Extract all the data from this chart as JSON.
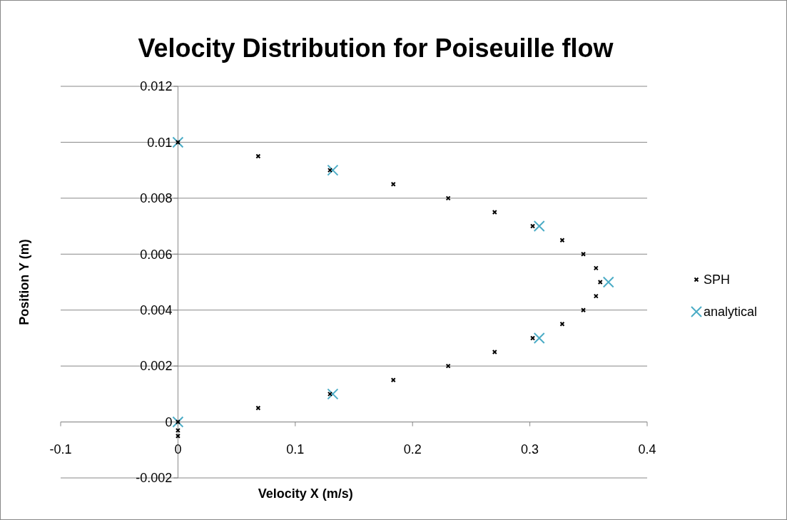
{
  "chart_data": {
    "type": "scatter",
    "title": "Velocity Distribution for Poiseuille flow",
    "xlabel": "Velocity X (m/s)",
    "ylabel": "Position Y (m)",
    "xlim": [
      -0.1,
      0.4
    ],
    "xticks": [
      -0.1,
      0,
      0.1,
      0.2,
      0.3,
      0.4
    ],
    "ylim": [
      -0.002,
      0.012
    ],
    "yticks": [
      -0.002,
      0,
      0.002,
      0.004,
      0.006,
      0.008,
      0.01,
      0.012
    ],
    "grid": "y",
    "legend": "right",
    "series": [
      {
        "name": "SPH",
        "color": "#000000",
        "marker": "cross",
        "x": [
          0,
          0,
          0,
          0.0684,
          0.1296,
          0.1836,
          0.2304,
          0.27,
          0.3024,
          0.3276,
          0.3456,
          0.3564,
          0.36,
          0.3564,
          0.3456,
          0.3276,
          0.3024,
          0.27,
          0.2304,
          0.1836,
          0.1296,
          0.0684,
          0
        ],
        "values": [
          -0.0005,
          -0.0003,
          0,
          0.0005,
          0.001,
          0.0015,
          0.002,
          0.0025,
          0.003,
          0.0035,
          0.004,
          0.0045,
          0.005,
          0.0055,
          0.006,
          0.0065,
          0.007,
          0.0075,
          0.008,
          0.0085,
          0.009,
          0.0095,
          0.01
        ]
      },
      {
        "name": "analytical",
        "color": "#4bacc6",
        "marker": "cross",
        "x": [
          0,
          0.132,
          0.308,
          0.367,
          0.308,
          0.132,
          0
        ],
        "values": [
          0.01,
          0.009,
          0.007,
          0.005,
          0.003,
          0.001,
          0
        ]
      }
    ]
  }
}
